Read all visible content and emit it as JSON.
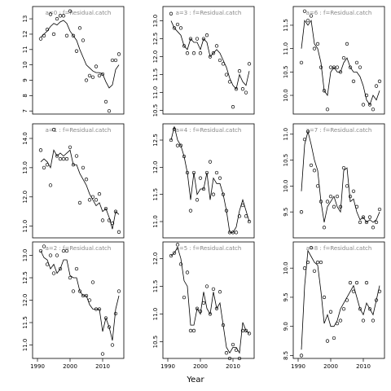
{
  "xlabel": "Year",
  "chart_data": [
    {
      "type": "line",
      "title": "a=0 : f=Residual.catch",
      "x": [
        1991,
        1992,
        1993,
        1994,
        1995,
        1996,
        1997,
        1998,
        1999,
        2000,
        2001,
        2002,
        2003,
        2004,
        2005,
        2006,
        2007,
        2008,
        2009,
        2010,
        2011,
        2012,
        2013,
        2014,
        2015
      ],
      "xlim": [
        1988.5,
        2016.5
      ],
      "ylim": [
        6.8,
        13.8
      ],
      "yticks": [
        7,
        8,
        9,
        10,
        11,
        12,
        13
      ],
      "series": [
        {
          "marker": "circle",
          "color": "#000000",
          "values": [
            11.7,
            11.9,
            12.3,
            13.3,
            12.0,
            13.0,
            13.2,
            13.2,
            11.9,
            13.5,
            11.9,
            10.9,
            12.4,
            11.6,
            9.0,
            9.3,
            9.2,
            9.9,
            9.3,
            9.4,
            7.6,
            7.0,
            10.3,
            10.3,
            10.7
          ]
        },
        {
          "marker": "none",
          "color": "#000000",
          "values": [
            11.8,
            12.0,
            12.2,
            12.5,
            12.7,
            12.6,
            12.8,
            12.9,
            12.7,
            12.2,
            11.9,
            11.6,
            11.0,
            10.5,
            10.0,
            9.8,
            9.6,
            9.5,
            9.5,
            9.4,
            8.9,
            8.5,
            8.7,
            9.7,
            10.0
          ]
        }
      ]
    },
    {
      "type": "line",
      "title": "a=3 : f=Residual.catch",
      "x": [
        1991,
        1992,
        1993,
        1994,
        1995,
        1996,
        1997,
        1998,
        1999,
        2000,
        2001,
        2002,
        2003,
        2004,
        2005,
        2006,
        2007,
        2008,
        2009,
        2010,
        2011,
        2012,
        2013,
        2014,
        2015
      ],
      "xlim": [
        1988.5,
        2016.5
      ],
      "ylim": [
        10.4,
        13.4
      ],
      "yticks": [
        10.5,
        {
          "value": 11,
          "label": "11.0"
        },
        11.5,
        {
          "value": 12,
          "label": "12.0"
        },
        12.5,
        {
          "value": 13,
          "label": "13.0"
        }
      ],
      "series": [
        {
          "marker": "circle",
          "color": "#000000",
          "values": [
            13.2,
            12.8,
            12.9,
            12.8,
            12.3,
            12.1,
            12.5,
            12.1,
            12.5,
            12.1,
            12.5,
            12.6,
            12.0,
            12.1,
            12.3,
            11.9,
            11.8,
            11.5,
            11.3,
            10.6,
            11.1,
            11.6,
            11.1,
            11.0,
            11.8
          ]
        },
        {
          "marker": "none",
          "color": "#000000",
          "values": [
            13.0,
            12.8,
            12.7,
            12.6,
            12.3,
            12.2,
            12.5,
            12.4,
            12.4,
            12.2,
            12.5,
            12.4,
            12.0,
            12.1,
            12.2,
            12.1,
            11.9,
            11.7,
            11.4,
            11.2,
            11.1,
            11.5,
            11.3,
            11.2,
            11.6
          ]
        }
      ]
    },
    {
      "type": "line",
      "title": "a=6 : f=Residual.catch",
      "x": [
        1991,
        1992,
        1993,
        1994,
        1995,
        1996,
        1997,
        1998,
        1999,
        2000,
        2001,
        2002,
        2003,
        2004,
        2005,
        2006,
        2007,
        2008,
        2009,
        2010,
        2011,
        2012,
        2013,
        2014,
        2015
      ],
      "xlim": [
        1988.5,
        2016.5
      ],
      "ylim": [
        9.6,
        11.9
      ],
      "yticks": [
        {
          "value": 10,
          "label": "10.0"
        },
        10.5,
        {
          "value": 11,
          "label": "11.0"
        },
        11.5
      ],
      "series": [
        {
          "marker": "circle",
          "color": "#000000",
          "values": [
            10.7,
            11.8,
            11.6,
            11.7,
            11.0,
            11.1,
            10.6,
            10.1,
            9.7,
            10.6,
            10.6,
            10.6,
            10.5,
            10.8,
            11.1,
            10.6,
            10.3,
            10.7,
            10.6,
            9.8,
            10.0,
            9.8,
            9.7,
            10.2,
            10.3
          ]
        },
        {
          "marker": "none",
          "color": "#000000",
          "values": [
            11.0,
            11.6,
            11.5,
            11.6,
            11.1,
            11.0,
            10.7,
            10.1,
            10.0,
            10.5,
            10.6,
            10.5,
            10.5,
            10.7,
            10.8,
            10.6,
            10.5,
            10.5,
            10.4,
            10.2,
            9.9,
            9.8,
            10.0,
            9.9,
            10.1
          ]
        }
      ]
    },
    {
      "type": "line",
      "title": "a=1 : f=Residual.catch",
      "x": [
        1991,
        1992,
        1993,
        1994,
        1995,
        1996,
        1997,
        1998,
        1999,
        2000,
        2001,
        2002,
        2003,
        2004,
        2005,
        2006,
        2007,
        2008,
        2009,
        2010,
        2011,
        2012,
        2013,
        2014,
        2015
      ],
      "xlim": [
        1988.5,
        2016.5
      ],
      "ylim": [
        10.6,
        14.5
      ],
      "yticks": [
        {
          "value": 11,
          "label": "11.0"
        },
        {
          "value": 12,
          "label": "12.0"
        },
        {
          "value": 13,
          "label": "13.0"
        },
        {
          "value": 14,
          "label": "14.0"
        }
      ],
      "series": [
        {
          "marker": "circle",
          "color": "#000000",
          "values": [
            13.6,
            13.0,
            13.1,
            12.4,
            14.3,
            13.4,
            13.3,
            13.3,
            13.3,
            13.7,
            13.1,
            13.4,
            11.8,
            13.0,
            12.6,
            11.9,
            12.0,
            11.9,
            12.1,
            11.2,
            11.6,
            11.2,
            11.1,
            11.5,
            10.8
          ]
        },
        {
          "marker": "none",
          "color": "#000000",
          "values": [
            13.2,
            13.3,
            13.2,
            13.0,
            13.6,
            13.4,
            13.5,
            13.4,
            13.5,
            13.6,
            13.1,
            13.1,
            12.8,
            12.6,
            12.4,
            12.1,
            11.9,
            11.7,
            11.8,
            11.5,
            11.6,
            11.3,
            10.9,
            11.5,
            11.4
          ]
        }
      ]
    },
    {
      "type": "line",
      "title": "a=4 : f=Residual.catch",
      "x": [
        1991,
        1992,
        1993,
        1994,
        1995,
        1996,
        1997,
        1998,
        1999,
        2000,
        2001,
        2002,
        2003,
        2004,
        2005,
        2006,
        2007,
        2008,
        2009,
        2010,
        2011,
        2012,
        2013,
        2014,
        2015
      ],
      "xlim": [
        1988.5,
        2016.5
      ],
      "ylim": [
        10.7,
        12.8
      ],
      "yticks": [
        {
          "value": 11,
          "label": "11.0"
        },
        11.5,
        {
          "value": 12,
          "label": "12.0"
        },
        12.5
      ],
      "series": [
        {
          "marker": "circle",
          "color": "#000000",
          "values": [
            12.5,
            12.7,
            12.4,
            12.4,
            12.2,
            11.9,
            11.2,
            11.9,
            11.4,
            11.8,
            11.6,
            11.9,
            12.1,
            11.5,
            11.9,
            11.8,
            11.5,
            11.2,
            10.8,
            10.8,
            10.8,
            11.1,
            11.3,
            11.1,
            11.0
          ]
        },
        {
          "marker": "none",
          "color": "#000000",
          "values": [
            12.5,
            12.75,
            12.5,
            12.4,
            12.2,
            11.9,
            11.4,
            11.9,
            11.5,
            11.6,
            11.6,
            11.9,
            11.4,
            11.8,
            11.7,
            11.7,
            11.5,
            11.2,
            10.8,
            10.8,
            10.9,
            11.2,
            11.4,
            11.2,
            11.0
          ]
        }
      ]
    },
    {
      "type": "line",
      "title": "a=7 : f=Residual.catch",
      "x": [
        1991,
        1992,
        1993,
        1994,
        1995,
        1996,
        1997,
        1998,
        1999,
        2000,
        2001,
        2002,
        2003,
        2004,
        2005,
        2006,
        2007,
        2008,
        2009,
        2010,
        2011,
        2012,
        2013,
        2014,
        2015
      ],
      "xlim": [
        1988.5,
        2016.5
      ],
      "ylim": [
        9.0,
        11.2
      ],
      "yticks": [
        9.5,
        {
          "value": 10,
          "label": "10.0"
        },
        10.5,
        {
          "value": 11,
          "label": "11.0"
        }
      ],
      "series": [
        {
          "marker": "circle",
          "color": "#000000",
          "values": [
            9.5,
            10.9,
            11.05,
            10.4,
            10.3,
            10.0,
            9.7,
            9.2,
            9.7,
            9.8,
            9.6,
            9.8,
            9.6,
            10.35,
            10.0,
            9.8,
            9.9,
            9.6,
            9.3,
            9.4,
            9.3,
            9.4,
            9.2,
            9.3,
            9.55
          ]
        },
        {
          "marker": "none",
          "color": "#000000",
          "values": [
            9.9,
            10.8,
            11.05,
            10.8,
            10.5,
            10.3,
            9.7,
            9.3,
            9.6,
            9.7,
            9.8,
            9.6,
            9.5,
            10.3,
            10.35,
            9.7,
            9.75,
            9.5,
            9.35,
            9.4,
            9.3,
            9.35,
            9.3,
            9.35,
            9.5
          ]
        }
      ]
    },
    {
      "type": "line",
      "title": "a=2 : f=Residual.catch",
      "x": [
        1991,
        1992,
        1993,
        1994,
        1995,
        1996,
        1997,
        1998,
        1999,
        2000,
        2001,
        2002,
        2003,
        2004,
        2005,
        2006,
        2007,
        2008,
        2009,
        2010,
        2011,
        2012,
        2013,
        2014,
        2015
      ],
      "xlim": [
        1988.5,
        2016.5
      ],
      "ylim": [
        10.7,
        13.3
      ],
      "xticks": [
        1990,
        2000,
        2010
      ],
      "yticks": [
        {
          "value": 11,
          "label": "11.0"
        },
        11.5,
        {
          "value": 12,
          "label": "12.0"
        },
        12.5,
        {
          "value": 13,
          "label": "13.0"
        }
      ],
      "series": [
        {
          "marker": "circle",
          "color": "#000000",
          "values": [
            13.1,
            13.2,
            12.8,
            13.0,
            12.6,
            13.0,
            12.7,
            13.1,
            13.1,
            12.5,
            12.2,
            12.7,
            12.2,
            12.1,
            12.1,
            12.0,
            12.4,
            11.8,
            11.8,
            10.8,
            11.6,
            11.4,
            11.0,
            11.7,
            12.2
          ]
        },
        {
          "marker": "none",
          "color": "#000000",
          "values": [
            13.1,
            12.95,
            12.9,
            12.7,
            12.8,
            12.6,
            12.7,
            12.9,
            12.9,
            12.55,
            12.5,
            12.5,
            12.2,
            12.1,
            12.1,
            11.9,
            11.8,
            11.8,
            11.8,
            11.3,
            11.6,
            11.4,
            11.1,
            11.8,
            12.1
          ]
        }
      ]
    },
    {
      "type": "line",
      "title": "a=5 : f=Residual.catch",
      "x": [
        1991,
        1992,
        1993,
        1994,
        1995,
        1996,
        1997,
        1998,
        1999,
        2000,
        2001,
        2002,
        2003,
        2004,
        2005,
        2006,
        2007,
        2008,
        2009,
        2010,
        2011,
        2012,
        2013,
        2014,
        2015
      ],
      "xlim": [
        1988.5,
        2016.5
      ],
      "ylim": [
        10.2,
        12.3
      ],
      "xticks": [
        1990,
        2000,
        2010
      ],
      "yticks": [
        10.5,
        {
          "value": 11,
          "label": "11.0"
        },
        11.5,
        {
          "value": 12,
          "label": "12.0"
        }
      ],
      "series": [
        {
          "marker": "circle",
          "color": "#000000",
          "values": [
            12.05,
            12.1,
            12.25,
            11.9,
            11.3,
            11.75,
            10.7,
            10.7,
            11.1,
            11.05,
            11.2,
            11.5,
            11.0,
            11.45,
            11.1,
            11.4,
            10.8,
            10.3,
            10.2,
            10.45,
            10.35,
            10.2,
            10.7,
            10.7,
            10.65
          ]
        },
        {
          "marker": "none",
          "color": "#000000",
          "values": [
            12.05,
            12.1,
            12.2,
            12.0,
            11.6,
            11.5,
            10.8,
            10.8,
            11.1,
            11.0,
            11.4,
            11.1,
            11.0,
            11.4,
            11.1,
            11.2,
            10.8,
            10.4,
            10.3,
            10.4,
            10.4,
            10.3,
            10.85,
            10.7,
            10.65
          ]
        }
      ]
    },
    {
      "type": "line",
      "title": "a=8 : f=Residual.catch",
      "x": [
        1991,
        1992,
        1993,
        1994,
        1995,
        1996,
        1997,
        1998,
        1999,
        2000,
        2001,
        2002,
        2003,
        2004,
        2005,
        2006,
        2007,
        2008,
        2009,
        2010,
        2011,
        2012,
        2013,
        2014,
        2015
      ],
      "xlim": [
        1988.5,
        2016.5
      ],
      "ylim": [
        8.45,
        10.45
      ],
      "xticks": [
        1990,
        2000,
        2010
      ],
      "yticks": [
        8.5,
        {
          "value": 9,
          "label": "9.0"
        },
        9.5,
        {
          "value": 10,
          "label": "10.0"
        }
      ],
      "series": [
        {
          "marker": "circle",
          "color": "#000000",
          "values": [
            8.5,
            10.0,
            10.1,
            10.35,
            9.95,
            10.1,
            10.1,
            9.5,
            8.75,
            9.25,
            8.8,
            9.05,
            9.1,
            9.3,
            9.45,
            9.75,
            9.6,
            9.75,
            9.3,
            9.1,
            9.75,
            9.3,
            9.1,
            9.45,
            9.6
          ]
        },
        {
          "marker": "none",
          "color": "#000000",
          "values": [
            8.6,
            9.7,
            10.3,
            10.2,
            10.1,
            10.05,
            9.6,
            9.05,
            9.2,
            9.0,
            9.0,
            9.1,
            9.3,
            9.4,
            9.5,
            9.6,
            9.7,
            9.5,
            9.3,
            9.2,
            9.4,
            9.3,
            9.2,
            9.45,
            9.7
          ]
        }
      ]
    }
  ]
}
